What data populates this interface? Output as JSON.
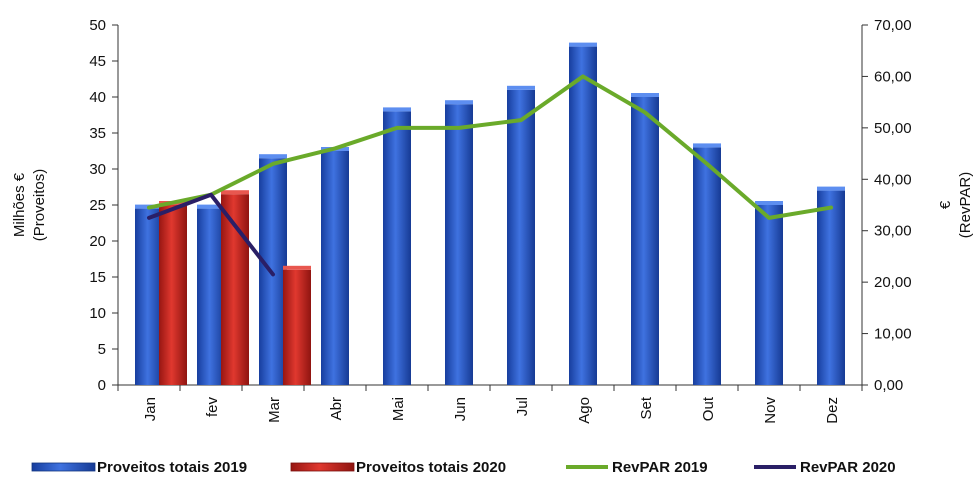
{
  "chart_data": {
    "type": "bar",
    "categories": [
      "Jan",
      "fev",
      "Mar",
      "Abr",
      "Mai",
      "Jun",
      "Jul",
      "Ago",
      "Set",
      "Out",
      "Nov",
      "Dez"
    ],
    "series": [
      {
        "name": "Proveitos totais 2019",
        "type": "bar",
        "axis": "left",
        "color": "#1f4fc0",
        "values": [
          24.5,
          24.5,
          31.5,
          32.5,
          38,
          39,
          41,
          47,
          40,
          33,
          25,
          27
        ]
      },
      {
        "name": "Proveitos totais 2020",
        "type": "bar",
        "axis": "left",
        "color": "#c0201b",
        "values": [
          25,
          26.5,
          16,
          null,
          null,
          null,
          null,
          null,
          null,
          null,
          null,
          null
        ]
      },
      {
        "name": "RevPAR 2019",
        "type": "line",
        "axis": "right",
        "color": "#6aaa2a",
        "values": [
          34.5,
          37,
          43,
          46,
          50,
          50,
          51.5,
          60,
          53,
          43,
          32.5,
          34.5
        ]
      },
      {
        "name": "RevPAR 2020",
        "type": "line",
        "axis": "right",
        "color": "#2a1f66",
        "values": [
          32.5,
          37,
          21.5,
          null,
          null,
          null,
          null,
          null,
          null,
          null,
          null,
          null
        ]
      }
    ],
    "yaxis_left": {
      "label_line1": "Milhões €",
      "label_line2": "(Proveitos)",
      "range": [
        0,
        50
      ],
      "ticks": [
        "0",
        "5",
        "10",
        "15",
        "20",
        "25",
        "30",
        "35",
        "40",
        "45",
        "50"
      ]
    },
    "yaxis_right": {
      "label_line1": "€",
      "label_line2": "(RevPAR)",
      "range": [
        0,
        70
      ],
      "ticks": [
        "0,00",
        "10,00",
        "20,00",
        "30,00",
        "40,00",
        "50,00",
        "60,00",
        "70,00"
      ]
    },
    "grid": false,
    "legend_position": "bottom"
  }
}
